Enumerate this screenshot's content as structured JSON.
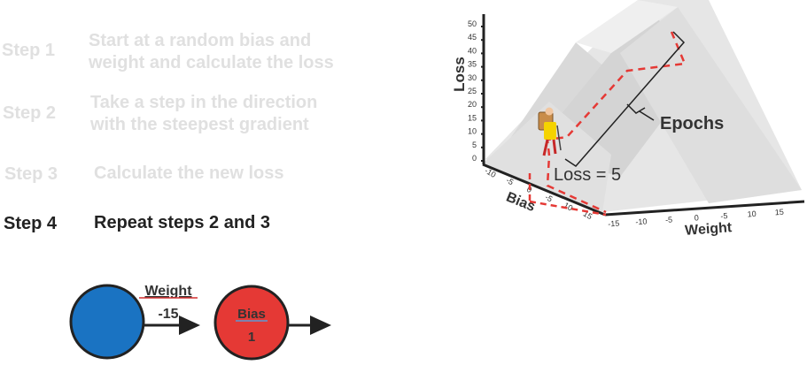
{
  "steps": [
    {
      "label": "Step 1",
      "text_line1": "Start at a random bias and",
      "text_line2": "weight and calculate the loss"
    },
    {
      "label": "Step 2",
      "text_line1": "Take a step in the direction",
      "text_line2": "with the steepest gradient"
    },
    {
      "label": "Step 3",
      "text_line1": "Calculate the new loss",
      "text_line2": ""
    },
    {
      "label": "Step 4",
      "text_line1": "Repeat steps 2 and 3",
      "text_line2": ""
    }
  ],
  "network": {
    "weight_label": "Weight",
    "weight_value": "-15",
    "bias_label": "Bias",
    "bias_value": "1",
    "colors": {
      "node1": "#1a73c2",
      "node2": "#e53935",
      "weight_text": "#d32f2f",
      "bias_text": "#5b9bd5",
      "arrow": "#222222"
    }
  },
  "chart": {
    "loss_axis_title": "Loss",
    "loss_ticks": [
      "0",
      "5",
      "10",
      "15",
      "20",
      "25",
      "30",
      "35",
      "40",
      "45",
      "50"
    ],
    "bias_axis_title": "Bias",
    "bias_ticks": [
      "-10",
      "-5",
      "0",
      "-5",
      "10",
      "15"
    ],
    "weight_axis_title": "Weight",
    "weight_ticks": [
      "-15",
      "-10",
      "-5",
      "0",
      "-5",
      "10",
      "15"
    ],
    "loss_annotation": "Loss = 5",
    "epochs_label": "Epochs",
    "colors": {
      "mountain": "#e3e3e3",
      "mountain_dark": "#cfcfcf",
      "path": "#e53935",
      "annotation": "#e53935"
    }
  }
}
